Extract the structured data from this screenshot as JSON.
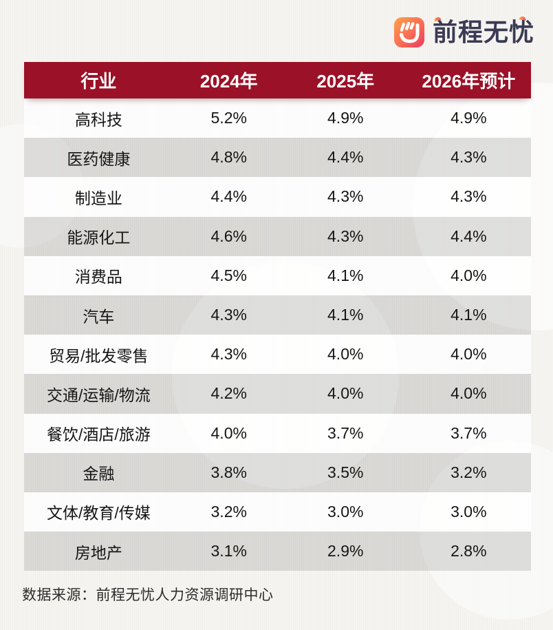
{
  "logo": {
    "text": "前程无忧",
    "icon": "hand-smile-icon",
    "colors": {
      "gradient_start": "#FFA14C",
      "gradient_mid": "#F96C55",
      "gradient_end": "#E93A5E",
      "text": "#3A3A54"
    }
  },
  "colors": {
    "header_bg": "#9B1127",
    "header_text": "#FFFFFF",
    "row_alt_bg": "#D9D9D9",
    "row_bg": "#FBFBFA",
    "body_text": "#151515",
    "page_bg": "#F5F4F1"
  },
  "table": {
    "headers": [
      "行业",
      "2024年",
      "2025年",
      "2026年预计"
    ],
    "rows": [
      [
        "高科技",
        "5.2%",
        "4.9%",
        "4.9%"
      ],
      [
        "医药健康",
        "4.8%",
        "4.4%",
        "4.3%"
      ],
      [
        "制造业",
        "4.4%",
        "4.3%",
        "4.3%"
      ],
      [
        "能源化工",
        "4.6%",
        "4.3%",
        "4.4%"
      ],
      [
        "消费品",
        "4.5%",
        "4.1%",
        "4.0%"
      ],
      [
        "汽车",
        "4.3%",
        "4.1%",
        "4.1%"
      ],
      [
        "贸易/批发零售",
        "4.3%",
        "4.0%",
        "4.0%"
      ],
      [
        "交通/运输/物流",
        "4.2%",
        "4.0%",
        "4.0%"
      ],
      [
        "餐饮/酒店/旅游",
        "4.0%",
        "3.7%",
        "3.7%"
      ],
      [
        "金融",
        "3.8%",
        "3.5%",
        "3.2%"
      ],
      [
        "文体/教育/传媒",
        "3.2%",
        "3.0%",
        "3.0%"
      ],
      [
        "房地产",
        "3.1%",
        "2.9%",
        "2.8%"
      ]
    ]
  },
  "footer": {
    "source": "数据来源：前程无忧人力资源调研中心"
  },
  "chart_data": {
    "type": "table",
    "columns": [
      "行业",
      "2024年",
      "2025年",
      "2026年预计"
    ],
    "unit": "%",
    "rows": [
      {
        "industry": "高科技",
        "y2024": 5.2,
        "y2025": 4.9,
        "y2026_forecast": 4.9
      },
      {
        "industry": "医药健康",
        "y2024": 4.8,
        "y2025": 4.4,
        "y2026_forecast": 4.3
      },
      {
        "industry": "制造业",
        "y2024": 4.4,
        "y2025": 4.3,
        "y2026_forecast": 4.3
      },
      {
        "industry": "能源化工",
        "y2024": 4.6,
        "y2025": 4.3,
        "y2026_forecast": 4.4
      },
      {
        "industry": "消费品",
        "y2024": 4.5,
        "y2025": 4.1,
        "y2026_forecast": 4.0
      },
      {
        "industry": "汽车",
        "y2024": 4.3,
        "y2025": 4.1,
        "y2026_forecast": 4.1
      },
      {
        "industry": "贸易/批发零售",
        "y2024": 4.3,
        "y2025": 4.0,
        "y2026_forecast": 4.0
      },
      {
        "industry": "交通/运输/物流",
        "y2024": 4.2,
        "y2025": 4.0,
        "y2026_forecast": 4.0
      },
      {
        "industry": "餐饮/酒店/旅游",
        "y2024": 4.0,
        "y2025": 3.7,
        "y2026_forecast": 3.7
      },
      {
        "industry": "金融",
        "y2024": 3.8,
        "y2025": 3.5,
        "y2026_forecast": 3.2
      },
      {
        "industry": "文体/教育/传媒",
        "y2024": 3.2,
        "y2025": 3.0,
        "y2026_forecast": 3.0
      },
      {
        "industry": "房地产",
        "y2024": 3.1,
        "y2025": 2.9,
        "y2026_forecast": 2.8
      }
    ],
    "source": "数据来源：前程无忧人力资源调研中心",
    "legend_position": "none",
    "grid": false
  }
}
